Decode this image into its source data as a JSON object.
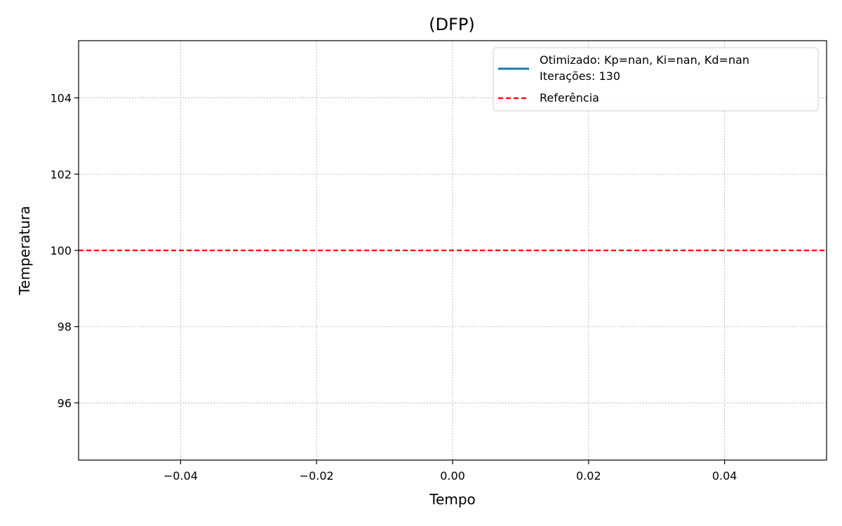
{
  "chart_data": {
    "type": "line",
    "title": "(DFP)",
    "xlabel": "Tempo",
    "ylabel": "Temperatura",
    "xlim": [
      -0.055,
      0.055
    ],
    "ylim": [
      94.5,
      105.5
    ],
    "x_ticks": [
      -0.04,
      -0.02,
      0.0,
      0.02,
      0.04
    ],
    "x_tick_labels": [
      "−0.04",
      "−0.02",
      "0.00",
      "0.02",
      "0.04"
    ],
    "y_ticks": [
      96,
      98,
      100,
      102,
      104
    ],
    "y_tick_labels": [
      "96",
      "98",
      "100",
      "102",
      "104"
    ],
    "grid": true,
    "legend_position": "top-right",
    "series": [
      {
        "name": "Otimizado: Kp=nan, Ki=nan, Kd=nan",
        "name_line2": "Iterações: 130",
        "color": "#1f77b4",
        "style": "solid",
        "x": [],
        "y": []
      },
      {
        "name": "Referência",
        "color": "#ff0000",
        "style": "dashed",
        "type": "hline",
        "y": 100
      }
    ]
  }
}
